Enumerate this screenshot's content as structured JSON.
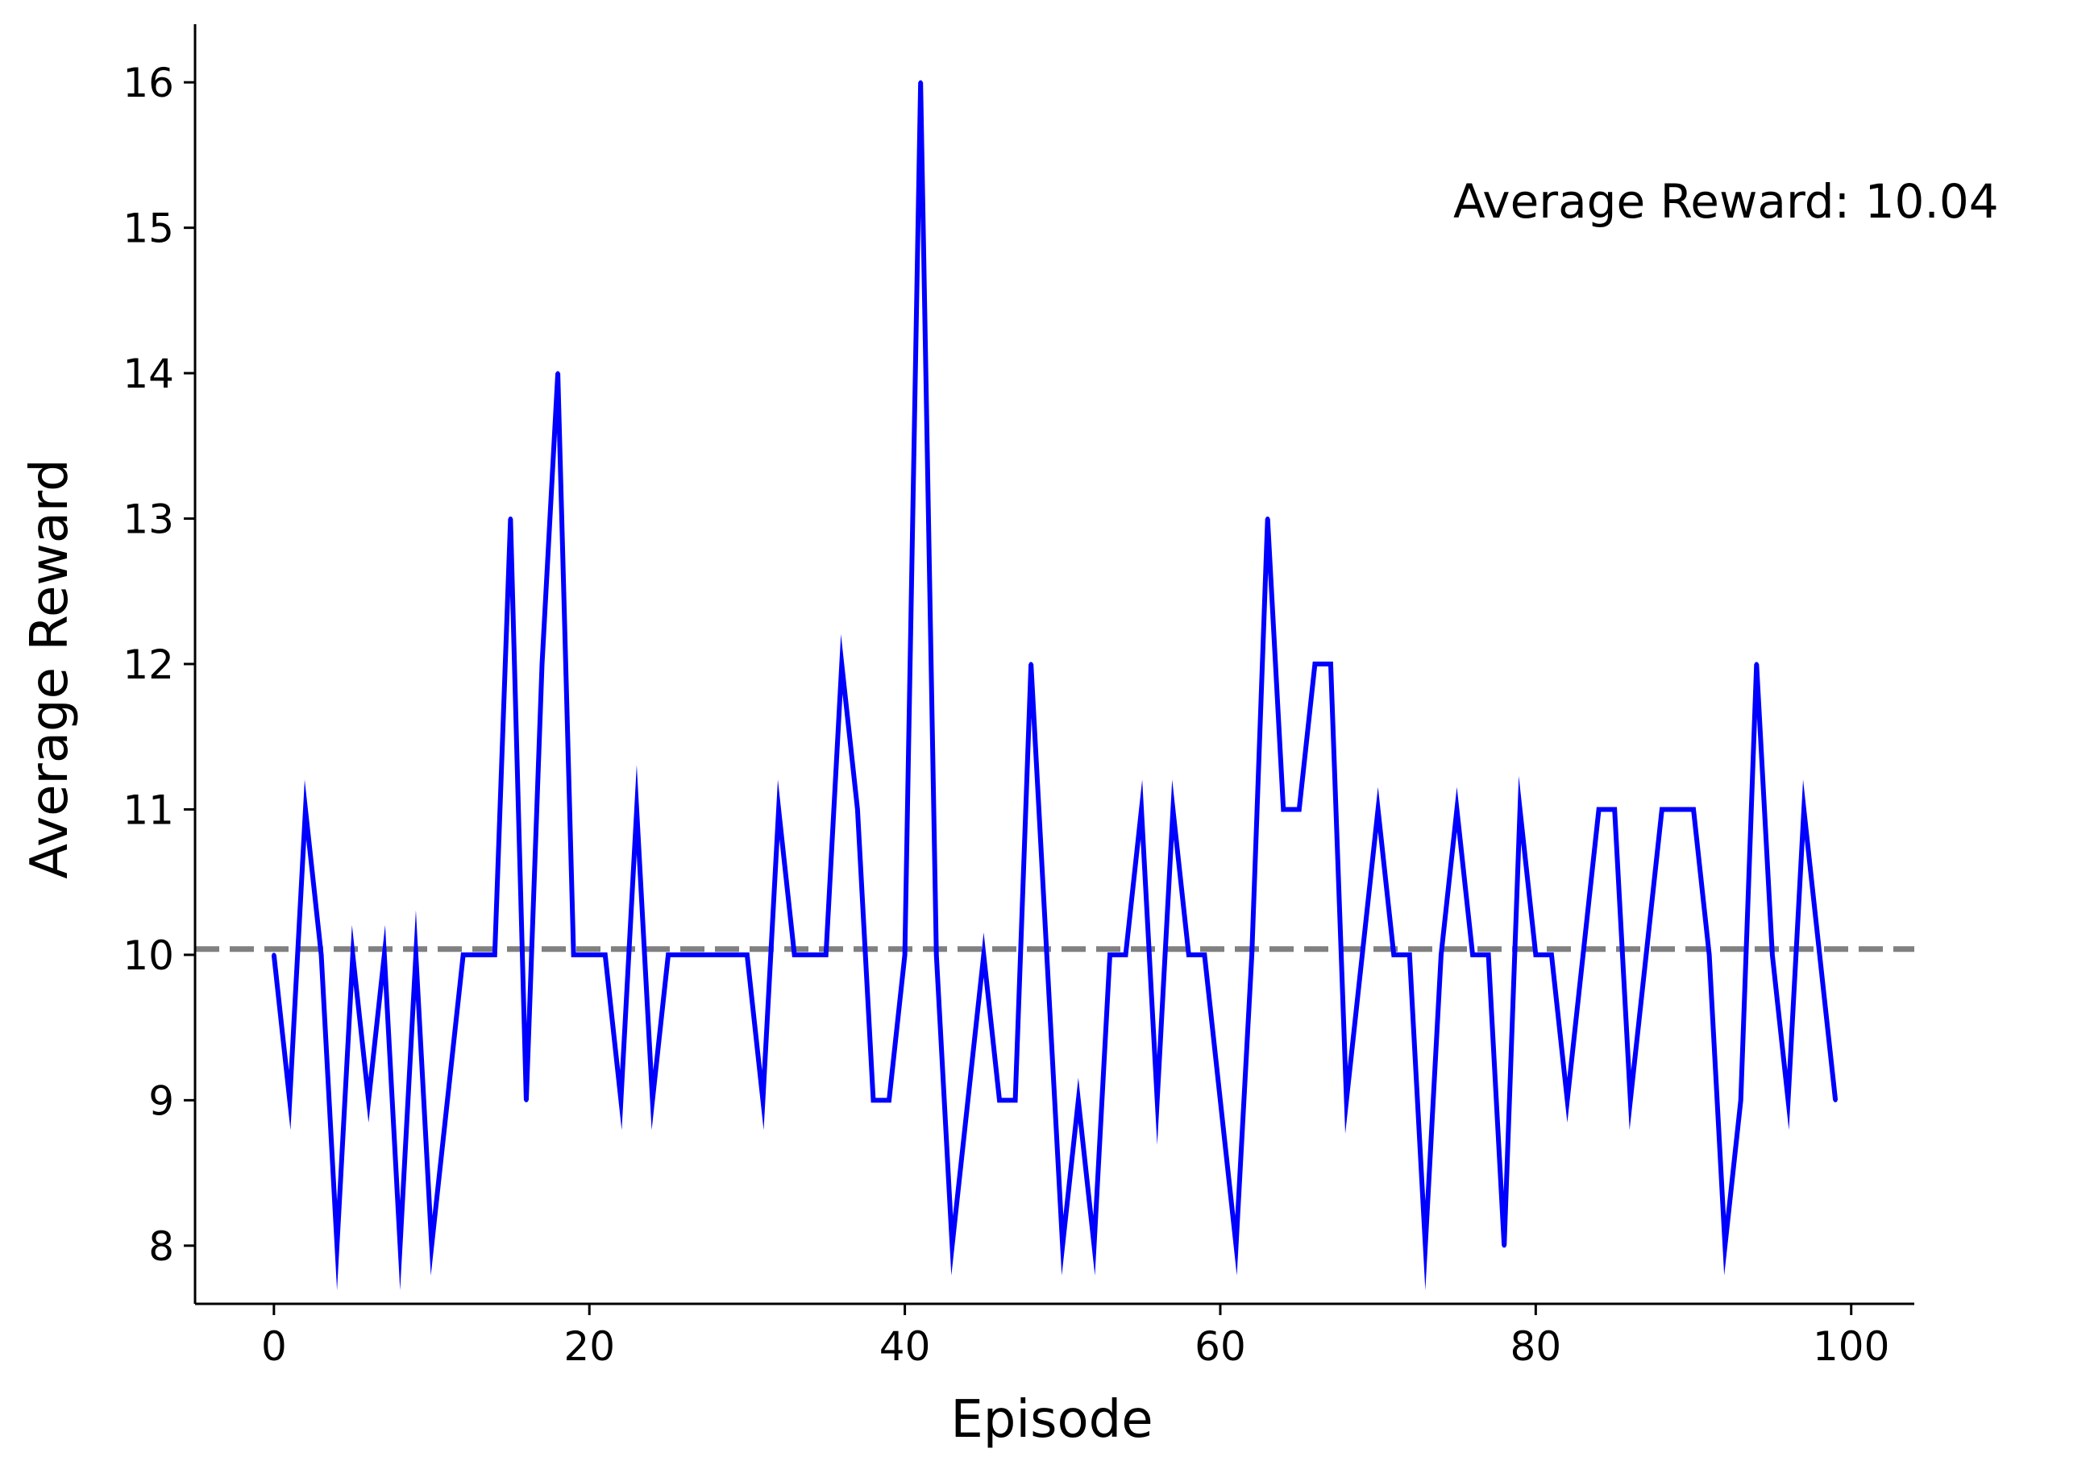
{
  "chart_data": {
    "type": "line",
    "xlabel": "Episode",
    "ylabel": "Average Reward",
    "xlim": [
      -5,
      104
    ],
    "ylim": [
      7.6,
      16.4
    ],
    "x_ticks": [
      0,
      20,
      40,
      60,
      80,
      100
    ],
    "y_ticks": [
      8,
      9,
      10,
      11,
      12,
      13,
      14,
      15,
      16
    ],
    "grid": false,
    "spines": "left-bottom",
    "series": [
      {
        "color": "#0000ff",
        "x": [
          0,
          1,
          2,
          3,
          4,
          5,
          6,
          7,
          8,
          9,
          10,
          11,
          12,
          13,
          14,
          15,
          16,
          17,
          18,
          19,
          20,
          21,
          22,
          23,
          24,
          25,
          26,
          27,
          28,
          29,
          30,
          31,
          32,
          33,
          34,
          35,
          36,
          37,
          38,
          39,
          40,
          41,
          42,
          43,
          44,
          45,
          46,
          47,
          48,
          49,
          50,
          51,
          52,
          53,
          54,
          55,
          56,
          57,
          58,
          59,
          60,
          61,
          62,
          63,
          64,
          65,
          66,
          67,
          68,
          69,
          70,
          71,
          72,
          73,
          74,
          75,
          76,
          77,
          78,
          79,
          80,
          81,
          82,
          83,
          84,
          85,
          86,
          87,
          88,
          89,
          90,
          91,
          92,
          93,
          94,
          95,
          96,
          97,
          98,
          99
        ],
        "values": [
          10,
          9,
          11,
          10,
          8,
          10,
          9,
          10,
          8,
          10,
          8,
          9,
          10,
          10,
          10,
          13,
          9,
          12,
          14,
          10,
          10,
          10,
          9,
          11,
          9,
          10,
          10,
          10,
          10,
          10,
          10,
          9,
          11,
          10,
          10,
          10,
          12,
          11,
          9,
          9,
          10,
          16,
          10,
          8,
          9,
          10,
          9,
          9,
          12,
          10,
          8,
          9,
          8,
          10,
          10,
          11,
          9,
          11,
          10,
          10,
          9,
          8,
          10,
          13,
          11,
          11,
          12,
          12,
          9,
          10,
          11,
          10,
          10,
          8,
          10,
          11,
          10,
          10,
          8,
          11,
          10,
          10,
          9,
          10,
          11,
          11,
          9,
          10,
          11,
          11,
          11,
          10,
          8,
          9,
          12,
          10,
          9,
          11,
          10,
          9
        ]
      }
    ],
    "hline": {
      "y": 10.04,
      "color": "#808080",
      "style": "dashed"
    },
    "annotation": "Average Reward: 10.04"
  }
}
